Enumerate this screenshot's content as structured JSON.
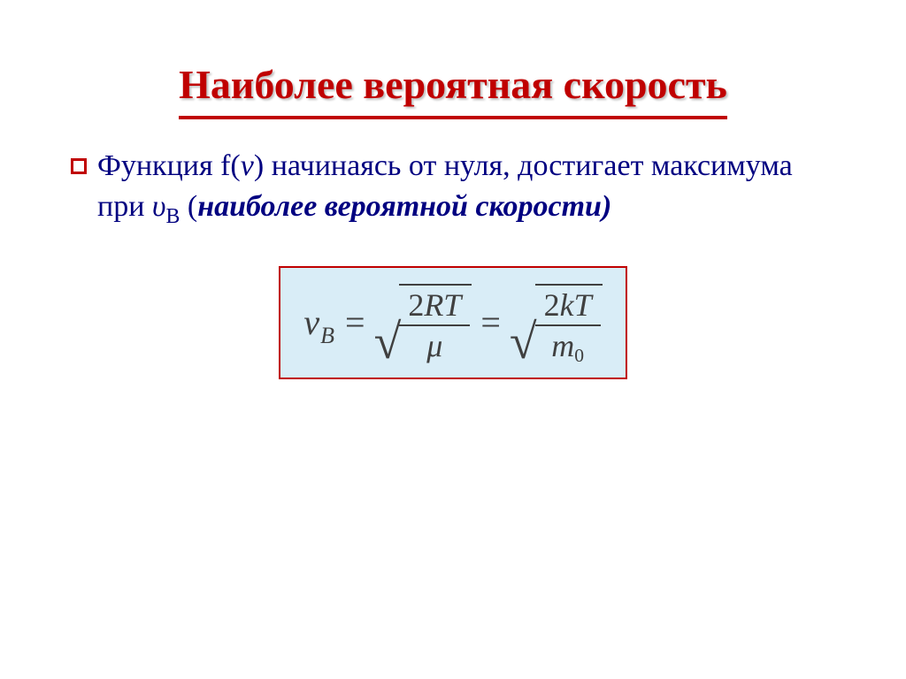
{
  "slide": {
    "title": "Наиболее вероятная  скорость",
    "para": {
      "pre": "Функция ",
      "fn": "f(",
      "fn_arg": "v",
      "fn_close": ")",
      "mid1": " начинаясь от нуля, достигает максимума при ",
      "sym_u": "υ",
      "sym_sub": "В",
      "paren_open": " (",
      "emph1": "наиболее вероятн",
      "emph1_tail": "ой",
      "emph2": " скорост",
      "emph2_tail": "и",
      "paren_close": ")"
    },
    "formula": {
      "v": "v",
      "vsub": "В",
      "eq": "=",
      "num1_a": "2",
      "num1_b": "RT",
      "den1": "μ",
      "num2_a": "2",
      "num2_b": "kT",
      "den2_m": "m",
      "den2_sub": "0"
    },
    "styling": {
      "title_color": "#c00000",
      "title_fontsize": 46,
      "body_color": "#000080",
      "body_fontsize": 34,
      "formula_bg": "#d9edf7",
      "formula_border": "#c00000",
      "formula_text": "#404040",
      "bullet_border": "#c00000",
      "background": "#ffffff"
    }
  }
}
